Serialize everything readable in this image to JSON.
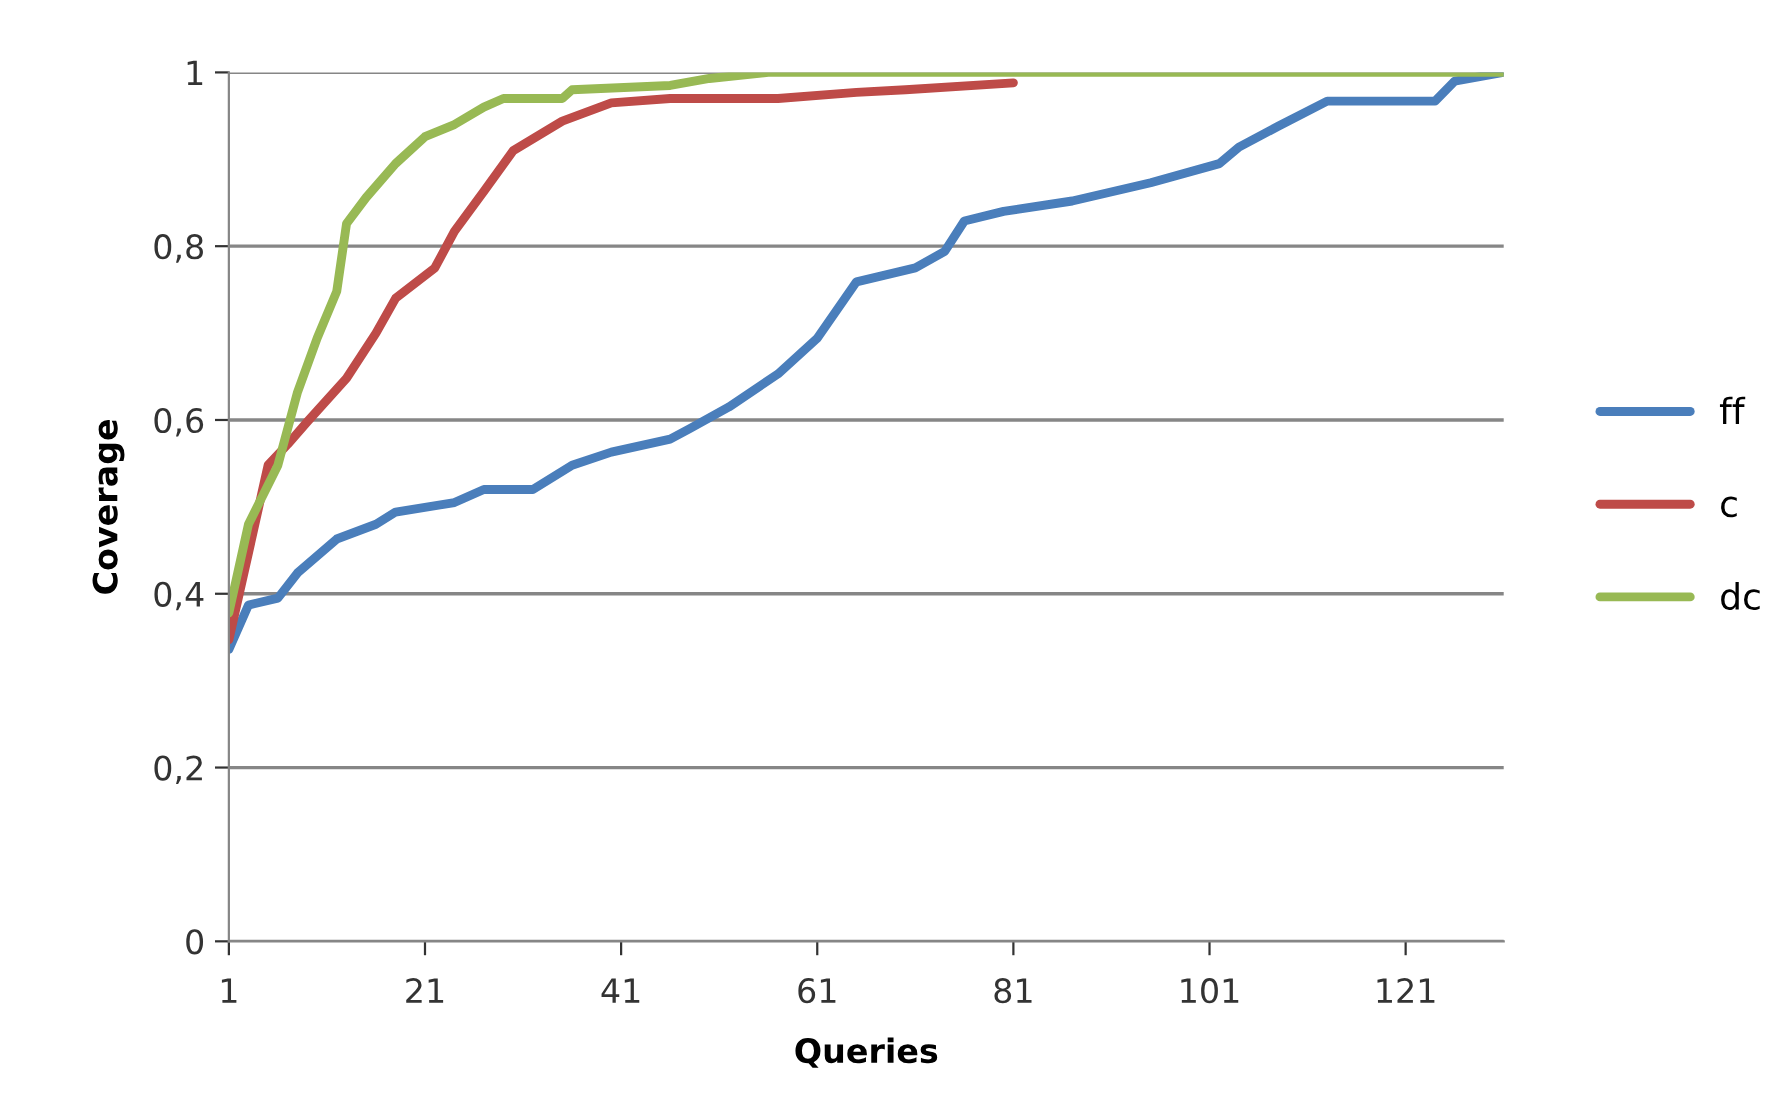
{
  "chart_data": {
    "type": "line",
    "xlabel": "Queries",
    "ylabel": "Coverage",
    "xlim": [
      1,
      131
    ],
    "xticks": [
      1,
      21,
      41,
      61,
      81,
      101,
      121
    ],
    "ylim": [
      0,
      1
    ],
    "yticks": [
      {
        "value": 0,
        "label": "0"
      },
      {
        "value": 0.2,
        "label": "0,2"
      },
      {
        "value": 0.4,
        "label": "0,4"
      },
      {
        "value": 0.6,
        "label": "0,6"
      },
      {
        "value": 0.8,
        "label": "0,8"
      },
      {
        "value": 1,
        "label": "1"
      }
    ],
    "grid": "y",
    "legend": "right",
    "marker": "none",
    "line_style": "solid",
    "series": [
      {
        "name": "ff",
        "color": "#4a7ebb",
        "x": [
          1,
          3,
          6,
          8,
          12,
          16,
          18,
          24,
          27,
          32,
          36,
          40,
          46,
          48,
          52,
          57,
          61,
          65,
          71,
          74,
          76,
          80,
          87,
          95,
          102,
          104,
          108,
          113,
          124,
          126,
          131
        ],
        "values": [
          0.336,
          0.387,
          0.395,
          0.424,
          0.463,
          0.48,
          0.494,
          0.505,
          0.52,
          0.52,
          0.548,
          0.563,
          0.578,
          0.59,
          0.615,
          0.653,
          0.694,
          0.759,
          0.775,
          0.794,
          0.829,
          0.84,
          0.852,
          0.873,
          0.895,
          0.914,
          0.938,
          0.967,
          0.967,
          0.99,
          1.0
        ]
      },
      {
        "name": "c",
        "color": "#be4b48",
        "x": [
          1,
          3,
          5,
          7,
          9,
          13,
          16,
          18,
          22,
          24,
          27,
          30,
          35,
          40,
          46,
          57,
          65,
          70,
          81
        ],
        "values": [
          0.347,
          0.447,
          0.548,
          0.572,
          0.598,
          0.648,
          0.7,
          0.74,
          0.775,
          0.817,
          0.863,
          0.91,
          0.944,
          0.965,
          0.97,
          0.97,
          0.977,
          0.98,
          0.988
        ]
      },
      {
        "name": "dc",
        "color": "#98b954",
        "x": [
          1,
          3,
          6,
          8,
          10,
          12,
          13,
          15,
          18,
          21,
          24,
          27,
          29,
          35,
          36,
          46,
          50,
          56,
          131
        ],
        "values": [
          0.378,
          0.48,
          0.548,
          0.632,
          0.694,
          0.748,
          0.826,
          0.856,
          0.895,
          0.926,
          0.94,
          0.96,
          0.97,
          0.97,
          0.98,
          0.985,
          0.993,
          1.0,
          1.0
        ]
      }
    ]
  }
}
